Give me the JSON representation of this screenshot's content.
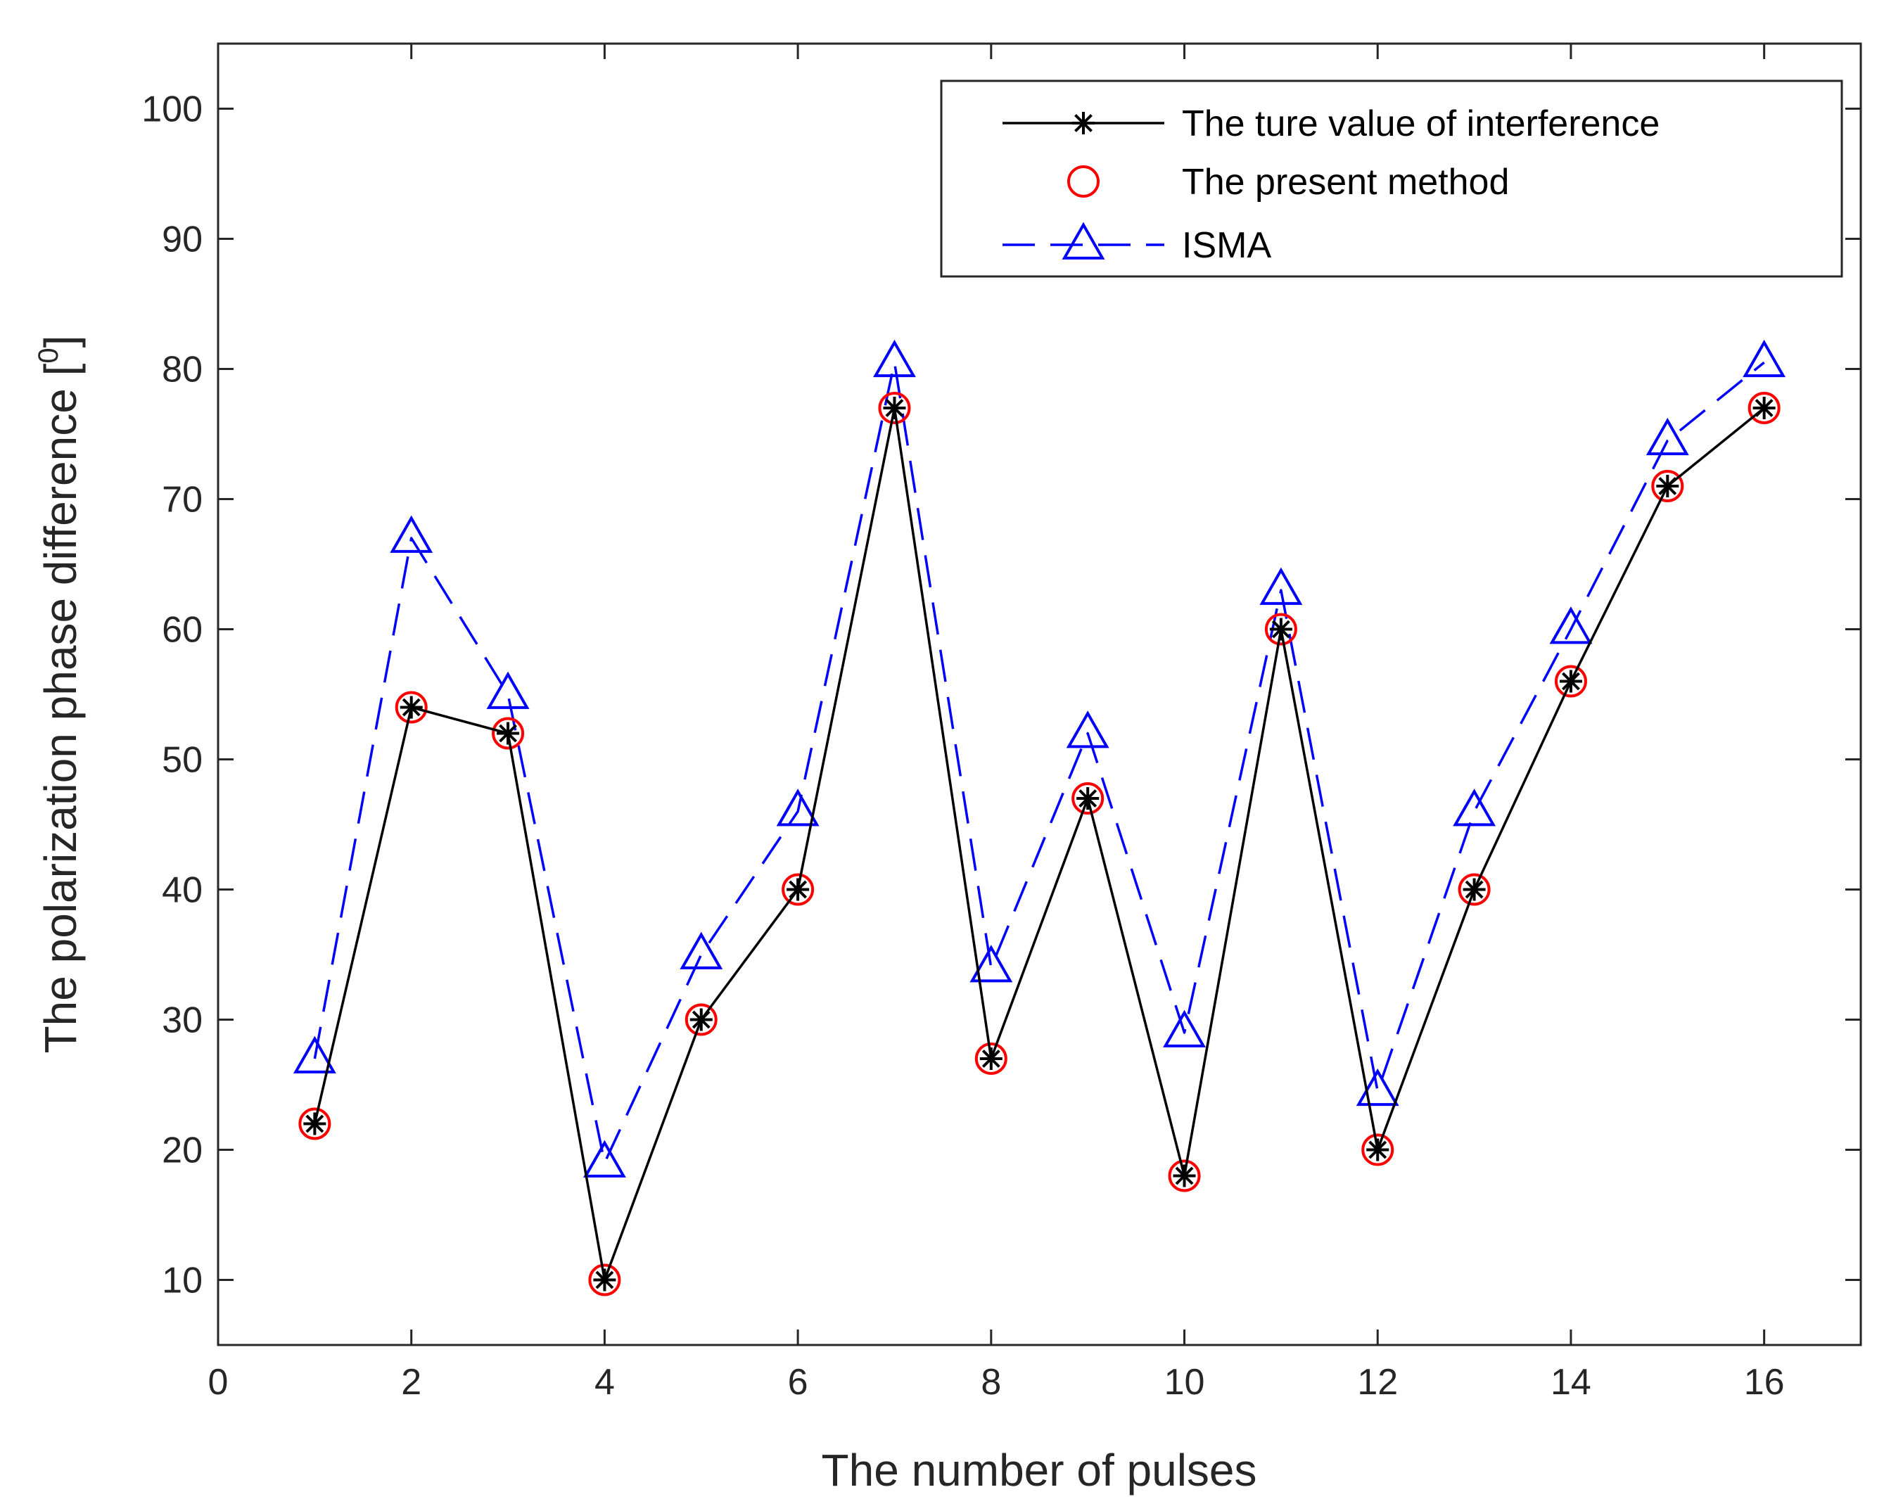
{
  "chart_data": {
    "type": "line",
    "title": "",
    "xlabel": "The number of pulses",
    "ylabel": "The polarization phase difference [",
    "ylabel_superscript": "0",
    "ylabel_end": "]",
    "xlim": [
      0,
      17
    ],
    "ylim": [
      5,
      105
    ],
    "xticks": [
      "0",
      "2",
      "4",
      "6",
      "8",
      "10",
      "12",
      "14",
      "16"
    ],
    "yticks": [
      "10",
      "20",
      "30",
      "40",
      "50",
      "60",
      "70",
      "80",
      "90",
      "100"
    ],
    "grid": false,
    "legend_position": "top-right",
    "x": [
      1,
      2,
      3,
      4,
      5,
      6,
      7,
      8,
      9,
      10,
      11,
      12,
      13,
      14,
      15,
      16
    ],
    "series": [
      {
        "name": "The ture value of interference",
        "color": "#000000",
        "marker": "asterisk",
        "line": "solid",
        "values": [
          22,
          54,
          52,
          10,
          30,
          40,
          77,
          27,
          47,
          18,
          60,
          20,
          40,
          56,
          71,
          77
        ]
      },
      {
        "name": "The present method",
        "color": "#ff0000",
        "marker": "circle",
        "line": "none",
        "values": [
          22,
          54,
          52,
          10,
          30,
          40,
          77,
          27,
          47,
          18,
          60,
          20,
          40,
          56,
          71,
          77
        ]
      },
      {
        "name": "ISMA",
        "color": "#0000ff",
        "marker": "triangle",
        "line": "dashed",
        "values": [
          27,
          67,
          55,
          19,
          35,
          46,
          80.5,
          34,
          52,
          29,
          63,
          24.5,
          46,
          60,
          74.5,
          80.5
        ]
      }
    ]
  }
}
